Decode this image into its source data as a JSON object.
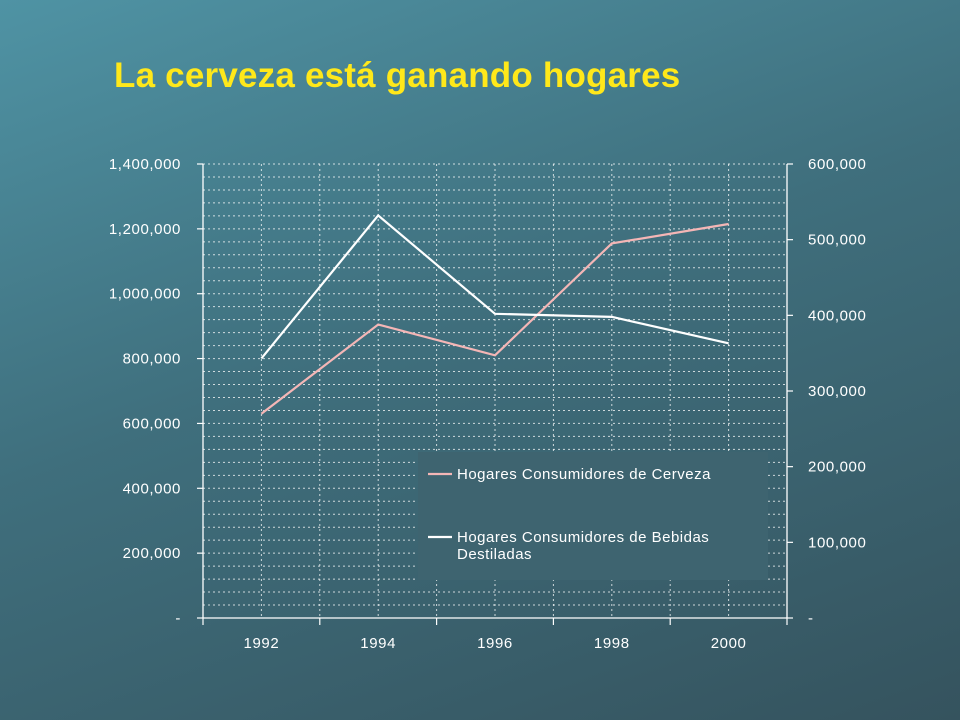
{
  "slide": {
    "title": "La cerveza está ganando hogares",
    "title_color": "#ffe81a"
  },
  "chart_data": {
    "type": "line",
    "title": "La cerveza está ganando hogares",
    "x": [
      "1992",
      "1994",
      "1996",
      "1998",
      "2000"
    ],
    "y_left": {
      "range": [
        0,
        1400000
      ],
      "ticks": [
        "-",
        "200,000",
        "400,000",
        "600,000",
        "800,000",
        "1,000,000",
        "1,200,000",
        "1,400,000"
      ]
    },
    "y_right": {
      "range": [
        0,
        600000
      ],
      "ticks": [
        "-",
        "100,000",
        "200,000",
        "300,000",
        "400,000",
        "500,000",
        "600,000"
      ]
    },
    "series": [
      {
        "name": "Hogares Consumidores de Cerveza",
        "axis": "left",
        "color": "#f4b6b6",
        "values": [
          630000,
          905000,
          810000,
          1155000,
          1215000
        ]
      },
      {
        "name": "Hogares Consumidores de Bebidas Destiladas",
        "axis": "right",
        "color": "#ffffff",
        "values": [
          343000,
          532000,
          402000,
          398000,
          363000
        ]
      }
    ],
    "grid": true,
    "legend_position": "bottom-right-inside"
  }
}
